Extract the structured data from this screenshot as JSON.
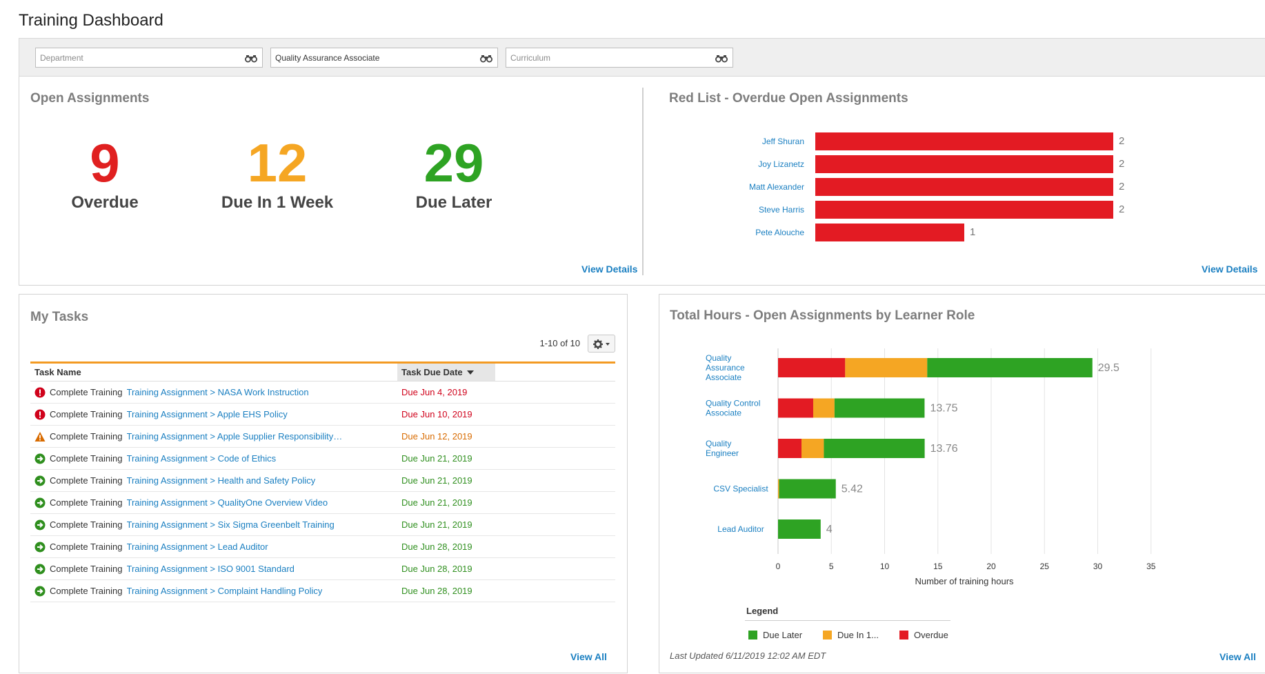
{
  "page_title": "Training Dashboard",
  "filters": [
    {
      "value": "",
      "placeholder": "Department"
    },
    {
      "value": "Quality Assurance Associate",
      "placeholder": ""
    },
    {
      "value": "",
      "placeholder": "Curriculum"
    }
  ],
  "open_assignments": {
    "title": "Open Assignments",
    "stats": [
      {
        "value": "9",
        "label": "Overdue",
        "color": "#e02020"
      },
      {
        "value": "12",
        "label": "Due In 1 Week",
        "color": "#f5a623"
      },
      {
        "value": "29",
        "label": "Due Later",
        "color": "#2ea323"
      }
    ],
    "view_details": "View Details"
  },
  "red_list": {
    "title": "Red List - Overdue Open Assignments",
    "view_details": "View Details",
    "chart_data": {
      "type": "bar",
      "orientation": "horizontal",
      "categories": [
        "Jeff Shuran",
        "Joy Lizanetz",
        "Matt Alexander",
        "Steve Harris",
        "Pete Alouche"
      ],
      "values": [
        2,
        2,
        2,
        2,
        1
      ],
      "color": "#e31b23",
      "xlim": [
        0,
        2
      ]
    }
  },
  "my_tasks": {
    "title": "My Tasks",
    "pager": "1-10 of 10",
    "columns": {
      "task_name": "Task Name",
      "due_date": "Task Due Date"
    },
    "rows": [
      {
        "status": "overdue",
        "action": "Complete Training",
        "assignment": "Training Assignment > NASA Work Instruction",
        "due": "Due Jun 4, 2019"
      },
      {
        "status": "overdue",
        "action": "Complete Training",
        "assignment": "Training Assignment > Apple EHS Policy",
        "due": "Due Jun 10, 2019"
      },
      {
        "status": "warning",
        "action": "Complete Training",
        "assignment": "Training Assignment > Apple Supplier Responsibility…",
        "due": "Due Jun 12, 2019"
      },
      {
        "status": "later",
        "action": "Complete Training",
        "assignment": "Training Assignment > Code of Ethics",
        "due": "Due Jun 21, 2019"
      },
      {
        "status": "later",
        "action": "Complete Training",
        "assignment": "Training Assignment > Health and Safety Policy",
        "due": "Due Jun 21, 2019"
      },
      {
        "status": "later",
        "action": "Complete Training",
        "assignment": "Training Assignment > QualityOne Overview Video",
        "due": "Due Jun 21, 2019"
      },
      {
        "status": "later",
        "action": "Complete Training",
        "assignment": "Training Assignment > Six Sigma Greenbelt Training",
        "due": "Due Jun 21, 2019"
      },
      {
        "status": "later",
        "action": "Complete Training",
        "assignment": "Training Assignment > Lead Auditor",
        "due": "Due Jun 28, 2019"
      },
      {
        "status": "later",
        "action": "Complete Training",
        "assignment": "Training Assignment > ISO 9001 Standard",
        "due": "Due Jun 28, 2019"
      },
      {
        "status": "later",
        "action": "Complete Training",
        "assignment": "Training Assignment > Complaint Handling Policy",
        "due": "Due Jun 28, 2019"
      }
    ],
    "view_all": "View All"
  },
  "total_hours": {
    "title": "Total Hours - Open Assignments by Learner Role",
    "view_all": "View All",
    "last_updated": "Last Updated 6/11/2019 12:02 AM EDT",
    "legend_title": "Legend",
    "chart_data": {
      "type": "bar",
      "orientation": "horizontal",
      "stacked": true,
      "categories": [
        [
          "Quality",
          "Assurance",
          "Associate"
        ],
        [
          "Quality Control",
          "Associate"
        ],
        [
          "Quality",
          "Engineer"
        ],
        [
          "CSV Specialist"
        ],
        [
          "Lead Auditor"
        ]
      ],
      "series": [
        {
          "name": "Overdue",
          "color": "#e31b23",
          "values": [
            6.3,
            3.3,
            2.2,
            0,
            0
          ]
        },
        {
          "name": "Due In 1...",
          "color": "#f5a623",
          "values": [
            7.7,
            2.0,
            2.1,
            0.1,
            0
          ]
        },
        {
          "name": "Due Later",
          "color": "#2ea323",
          "values": [
            15.5,
            8.45,
            9.46,
            5.32,
            4
          ]
        }
      ],
      "totals": [
        "29.5",
        "13.75",
        "13.76",
        "5.42",
        "4"
      ],
      "legend_order": [
        "Due Later",
        "Due In 1...",
        "Overdue"
      ],
      "xlabel": "Number of training hours",
      "xlim": [
        0,
        35
      ],
      "xticks": [
        "0",
        "5",
        "10",
        "15",
        "20",
        "25",
        "30",
        "35"
      ],
      "grid": true,
      "legend_position": "bottom-left"
    }
  }
}
